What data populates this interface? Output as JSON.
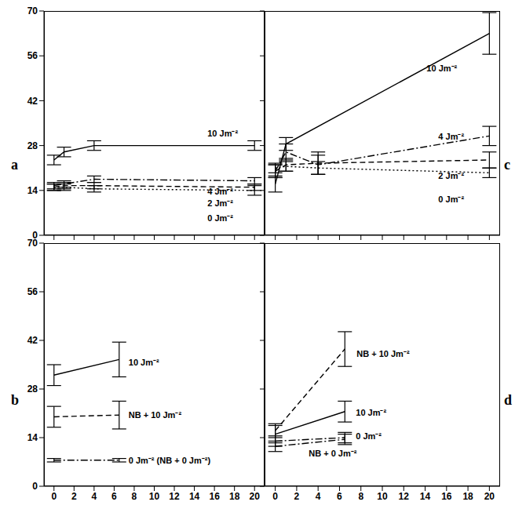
{
  "chart_data": [
    {
      "type": "line",
      "title": "a",
      "xlim": [
        -1,
        21
      ],
      "ylim": [
        0,
        70
      ],
      "xticks": [
        0,
        2,
        4,
        6,
        8,
        10,
        12,
        14,
        16,
        18,
        20
      ],
      "yticks": [
        0,
        14,
        28,
        42,
        56,
        70
      ],
      "tick_labels": "y",
      "series": [
        {
          "name": "10 Jm⁻²",
          "color": "#000000",
          "line_style": "solid",
          "x": [
            0,
            1,
            4,
            20
          ],
          "values": [
            23.5,
            26,
            28,
            28
          ],
          "errors": [
            1.5,
            1.5,
            1.5,
            1.5
          ]
        },
        {
          "name": "4 Jm⁻²",
          "color": "#000000",
          "line_style": "dashdot",
          "x": [
            0,
            1,
            4,
            20
          ],
          "values": [
            15.5,
            16,
            17.5,
            17
          ],
          "errors": [
            1,
            1,
            1,
            1
          ]
        },
        {
          "name": "2 Jm⁻²",
          "color": "#000000",
          "line_style": "dashed",
          "x": [
            0,
            1,
            4,
            20
          ],
          "values": [
            15,
            15.5,
            15.5,
            15
          ],
          "errors": [
            1,
            1,
            1,
            1
          ]
        },
        {
          "name": "0 Jm⁻²",
          "color": "#000000",
          "line_style": "dotted",
          "x": [
            0,
            1,
            4,
            20
          ],
          "values": [
            15,
            15,
            14.5,
            14
          ],
          "errors": [
            1,
            1,
            1,
            1.5
          ]
        }
      ]
    },
    {
      "type": "line",
      "title": "c",
      "xlim": [
        -1,
        21
      ],
      "ylim": [
        0,
        70
      ],
      "xticks": [
        0,
        2,
        4,
        6,
        8,
        10,
        12,
        14,
        16,
        18,
        20
      ],
      "yticks": [
        0,
        14,
        28,
        42,
        56,
        70
      ],
      "tick_labels": false,
      "series": [
        {
          "name": "10 Jm⁻²",
          "color": "#000000",
          "line_style": "solid",
          "x": [
            0,
            1,
            20
          ],
          "values": [
            16,
            28.5,
            63
          ],
          "errors": [
            2.5,
            2,
            6.5
          ]
        },
        {
          "name": "4 Jm⁻²",
          "color": "#000000",
          "line_style": "dashdot",
          "x": [
            0,
            1,
            4,
            20
          ],
          "values": [
            20,
            26,
            22,
            31
          ],
          "errors": [
            2,
            2.5,
            3,
            3
          ]
        },
        {
          "name": "2 Jm⁻²",
          "color": "#000000",
          "line_style": "dashed",
          "x": [
            0,
            1,
            4,
            20
          ],
          "values": [
            20,
            22,
            22.5,
            23.5
          ],
          "errors": [
            2,
            2,
            3.5,
            2.5
          ]
        },
        {
          "name": "0 Jm⁻²",
          "color": "#000000",
          "line_style": "dotted",
          "x": [
            0,
            1,
            4,
            20
          ],
          "values": [
            21,
            21.5,
            21,
            19.5
          ],
          "errors": [
            1.5,
            1.5,
            2,
            1.5
          ]
        }
      ]
    },
    {
      "type": "line",
      "title": "b",
      "xlim": [
        -1,
        21
      ],
      "ylim": [
        0,
        70
      ],
      "xticks": [
        0,
        2,
        4,
        6,
        8,
        10,
        12,
        14,
        16,
        18,
        20
      ],
      "yticks": [
        0,
        14,
        28,
        42,
        56,
        70
      ],
      "series": [
        {
          "name": "10 Jm⁻²",
          "color": "#000000",
          "line_style": "solid",
          "x": [
            0,
            6.5
          ],
          "values": [
            32,
            36.5
          ],
          "errors": [
            3,
            5
          ]
        },
        {
          "name": "NB + 10 Jm⁻²",
          "color": "#000000",
          "line_style": "dashed",
          "x": [
            0,
            6.5
          ],
          "values": [
            20,
            20.5
          ],
          "errors": [
            3,
            4
          ]
        },
        {
          "name": "0 Jm⁻²  (NB + 0 Jm⁻²)",
          "color": "#000000",
          "line_style": "dashdot",
          "x": [
            0,
            6.5
          ],
          "values": [
            7.5,
            7.5
          ],
          "errors": [
            0.5,
            0.5
          ]
        }
      ]
    },
    {
      "type": "line",
      "title": "d",
      "xlim": [
        -1,
        21
      ],
      "ylim": [
        0,
        70
      ],
      "xticks": [
        0,
        2,
        4,
        6,
        8,
        10,
        12,
        14,
        16,
        18,
        20
      ],
      "yticks": [
        0,
        14,
        28,
        42,
        56,
        70
      ],
      "tick_labels": "x",
      "series": [
        {
          "name": "NB + 10 Jm⁻²",
          "color": "#000000",
          "line_style": "dashed",
          "x": [
            0,
            6.5
          ],
          "values": [
            16,
            39.5
          ],
          "errors": [
            2,
            5
          ]
        },
        {
          "name": "10 Jm⁻²",
          "color": "#000000",
          "line_style": "solid",
          "x": [
            0,
            6.5
          ],
          "values": [
            15,
            21.5
          ],
          "errors": [
            2.5,
            3
          ]
        },
        {
          "name": "0 Jm⁻²",
          "color": "#000000",
          "line_style": "dashdot",
          "x": [
            0,
            6.5
          ],
          "values": [
            13,
            14
          ],
          "errors": [
            1.5,
            1.5
          ]
        },
        {
          "name": "NB + 0 Jm⁻²",
          "color": "#000000",
          "line_style": "dashdot",
          "x": [
            0,
            6.5
          ],
          "values": [
            11.5,
            13.5
          ],
          "errors": [
            1.5,
            1.5
          ]
        }
      ]
    }
  ]
}
